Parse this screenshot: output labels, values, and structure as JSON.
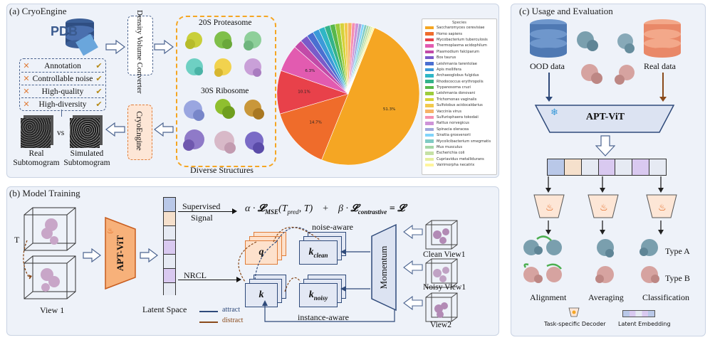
{
  "panel_a": {
    "title": "(a) CryoEngine",
    "pdb_label": "PDB",
    "density_converter": "Density Volume Converter",
    "proteasome": "20S Proteasome",
    "ribosome": "30S Ribosome",
    "diverse": "Diverse Structures",
    "cryoengine": "CryoEngine",
    "features": [
      {
        "label": "Annotation",
        "x": "✕",
        "ok": "✔"
      },
      {
        "label": "Controllable noise",
        "x": "✕",
        "ok": "✔"
      },
      {
        "label": "High-quality",
        "x": "✕",
        "ok": "✔"
      },
      {
        "label": "High-diversity",
        "x": "✕",
        "ok": "✔"
      }
    ],
    "vs": "vs",
    "real_sub": "Real\nSubtomogram",
    "sim_sub": "Simulated\nSubtomogram",
    "pie": {
      "legend_title": "Species",
      "species": [
        {
          "name": "Saccharomyces cerevisiae",
          "color": "#f5a623",
          "value": 51.3,
          "label": "51.3%"
        },
        {
          "name": "Homo sapiens",
          "color": "#ef6c2b",
          "value": 14.7,
          "label": "14.7%"
        },
        {
          "name": "Mycobacterium tuberculosis",
          "color": "#e8414a",
          "value": 10.1,
          "label": "10.1%"
        },
        {
          "name": "Thermoplasma acidophilum",
          "color": "#e25bb0",
          "value": 6.3,
          "label": "6.3%"
        },
        {
          "name": "Plasmodium falciparum",
          "color": "#c24aa8",
          "value": 2.0,
          "label": ""
        },
        {
          "name": "Bos taurus",
          "color": "#7a5bc9",
          "value": 1.8,
          "label": ""
        },
        {
          "name": "Leishmania tarentolae",
          "color": "#4a6fd1",
          "value": 1.6,
          "label": ""
        },
        {
          "name": "Apis mellifera",
          "color": "#3b9ad9",
          "value": 1.5,
          "label": ""
        },
        {
          "name": "Archaeoglobus fulgidus",
          "color": "#2fb6c6",
          "value": 1.4,
          "label": ""
        },
        {
          "name": "Rhodococcus erythropolis",
          "color": "#33b38a",
          "value": 1.3,
          "label": ""
        },
        {
          "name": "Trypanosoma cruzi",
          "color": "#58b84b",
          "value": 1.2,
          "label": ""
        },
        {
          "name": "Leishmania donovani",
          "color": "#9ccc3c",
          "value": 1.1,
          "label": ""
        },
        {
          "name": "Trichomonas vaginalis",
          "color": "#d6d23a",
          "value": 1.0,
          "label": ""
        },
        {
          "name": "Sulfolobus acidocaldarius",
          "color": "#f2c94c",
          "value": 0.9,
          "label": ""
        },
        {
          "name": "Vaccinia virus",
          "color": "#f7b267",
          "value": 0.9,
          "label": ""
        },
        {
          "name": "Sulfurisphaera tokodaii",
          "color": "#f48fb1",
          "value": 0.8,
          "label": ""
        },
        {
          "name": "Rattus norvegicus",
          "color": "#ce93d8",
          "value": 0.8,
          "label": ""
        },
        {
          "name": "Spinacia oleracea",
          "color": "#9fa8da",
          "value": 0.7,
          "label": ""
        },
        {
          "name": "Siraitia grosvenorii",
          "color": "#81d4fa",
          "value": 0.6,
          "label": ""
        },
        {
          "name": "Mycolicibacterium smegmatis",
          "color": "#80cbc4",
          "value": 0.6,
          "label": ""
        },
        {
          "name": "Mus musculus",
          "color": "#a5d6a7",
          "value": 0.5,
          "label": ""
        },
        {
          "name": "Escherichia coli",
          "color": "#c5e1a5",
          "value": 0.5,
          "label": ""
        },
        {
          "name": "Cupriavidus metallidurans",
          "color": "#e6ee9c",
          "value": 0.4,
          "label": ""
        },
        {
          "name": "Vairimorpha necatrix",
          "color": "#fff59d",
          "value": 0.4,
          "label": ""
        }
      ]
    }
  },
  "panel_b": {
    "title": "(b) Model Training",
    "t_label": "T",
    "view1": "View 1",
    "aptvit": "APT-ViT",
    "latent_space": "Latent Space",
    "supervised": "Supervised",
    "signal": "Signal",
    "formula": {
      "alpha": "α ·",
      "lmse": "𝓛",
      "mse_sub": "MSE",
      "args": "(T",
      "pred": "pred",
      "args2": ", T)",
      "plus": "+",
      "beta": "β ·",
      "lcon": "𝓛",
      "con_sub": "contrastive",
      "eq": "= 𝓛"
    },
    "nrcl": "NRCL",
    "q": "q",
    "k": "k",
    "kclean": "k",
    "kclean_sub": "clean",
    "knoisy": "k",
    "knoisy_sub": "noisy",
    "noise_aware": "noise-aware",
    "instance_aware": "instance-aware",
    "momentum": "Momentum",
    "clean_view": "Clean View1",
    "noisy_view": "Noisy View1",
    "view2": "View2",
    "attract": "attract",
    "distract": "distract"
  },
  "panel_c": {
    "title": "(c) Usage and Evaluation",
    "ood": "OOD data",
    "real": "Real data",
    "aptvit": "APT-ViT",
    "alignment": "Alignment",
    "averaging": "Averaging",
    "classification": "Classification",
    "type_a": "Type A",
    "type_b": "Type B",
    "decoder_legend": "Task-specific Decoder",
    "embedding_legend": "Latent Embedding"
  },
  "colors": {
    "panel_bg": "#eef2f9",
    "orange": "#f5a623",
    "vit_orange": "#f7b17a",
    "embed_purple": "#d9c9f0",
    "embed_blue": "#b9c8e8",
    "navy": "#2f4a7a"
  }
}
